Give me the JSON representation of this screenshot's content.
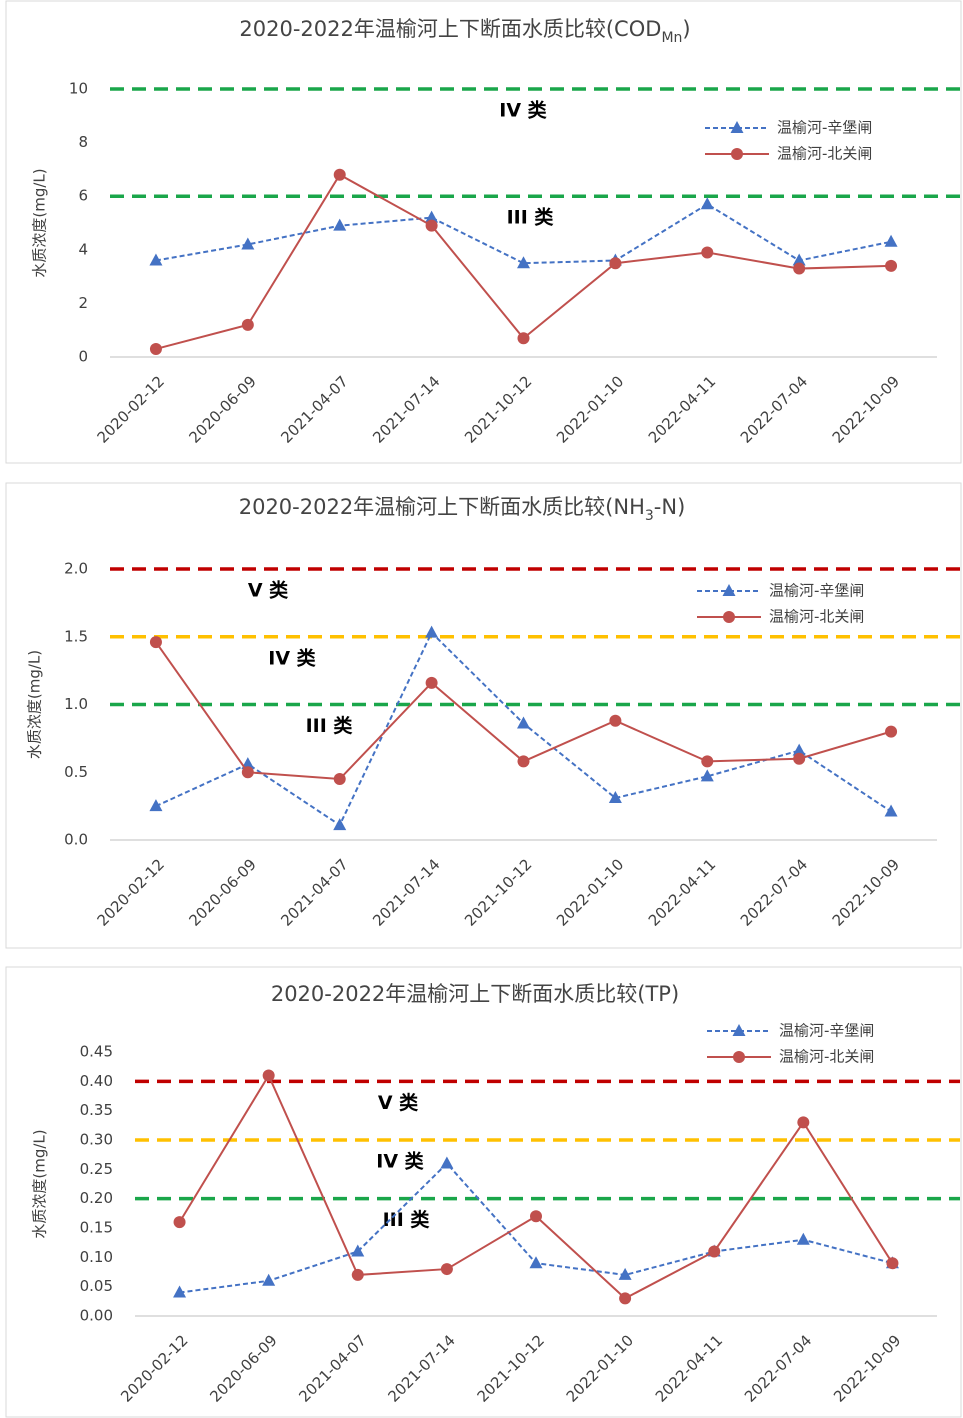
{
  "chart_data": [
    {
      "type": "line",
      "title": [
        "2020-2022年温榆河上下断面水质比较(COD",
        "Mn",
        ")"
      ],
      "y_label": "水质浓度(mg/L)",
      "categories": [
        "2020-02-12",
        "2020-06-09",
        "2021-04-07",
        "2021-07-14",
        "2021-10-12",
        "2022-01-10",
        "2022-04-11",
        "2022-07-04",
        "2022-10-09"
      ],
      "series": [
        {
          "name": "温榆河-辛堡闸",
          "color": "#4472c4",
          "values": [
            3.6,
            4.2,
            4.9,
            5.2,
            3.5,
            3.6,
            5.7,
            3.6,
            4.3
          ]
        },
        {
          "name": "温榆河-北关闸",
          "color": "#c0504d",
          "values": [
            0.3,
            1.2,
            6.8,
            4.9,
            0.7,
            3.5,
            3.9,
            3.3,
            3.4
          ]
        }
      ],
      "reference_lines": [
        {
          "value": 10,
          "color": "#1aa64a",
          "label": "IV 类"
        },
        {
          "value": 6,
          "color": "#1aa64a",
          "label": "III 类"
        }
      ],
      "ylim": [
        0,
        10
      ],
      "yticks": [
        0,
        2,
        4,
        6,
        8,
        10
      ],
      "grid": false,
      "legend": "upper right"
    },
    {
      "type": "line",
      "title": [
        "2020-2022年温榆河上下断面水质比较(NH",
        "3",
        "-N)"
      ],
      "y_label": "水质浓度(mg/L)",
      "categories": [
        "2020-02-12",
        "2020-06-09",
        "2021-04-07",
        "2021-07-14",
        "2021-10-12",
        "2022-01-10",
        "2022-04-11",
        "2022-07-04",
        "2022-10-09"
      ],
      "series": [
        {
          "name": "温榆河-辛堡闸",
          "color": "#4472c4",
          "values": [
            0.25,
            0.56,
            0.11,
            1.53,
            0.86,
            0.31,
            0.47,
            0.66,
            0.21
          ]
        },
        {
          "name": "温榆河-北关闸",
          "color": "#c0504d",
          "values": [
            1.46,
            0.5,
            0.45,
            1.16,
            0.58,
            0.88,
            0.58,
            0.6,
            0.8
          ]
        }
      ],
      "reference_lines": [
        {
          "value": 2,
          "color": "#c00000",
          "label": "V 类"
        },
        {
          "value": 1.5,
          "color": "#ffc000",
          "label": "IV 类"
        },
        {
          "value": 1,
          "color": "#1aa64a",
          "label": "III 类"
        }
      ],
      "ylim": [
        0,
        2
      ],
      "yticks": [
        {
          "value": 0,
          "label": "0.0"
        },
        0.5,
        {
          "value": 1,
          "label": "1.0"
        },
        1.5,
        {
          "value": 2,
          "label": "2.0"
        }
      ],
      "grid": false,
      "legend": "upper right"
    },
    {
      "type": "line",
      "title": "2020-2022年温榆河上下断面水质比较(TP)",
      "y_label": "水质浓度(mg/L)",
      "categories": [
        "2020-02-12",
        "2020-06-09",
        "2021-04-07",
        "2021-07-14",
        "2021-10-12",
        "2022-01-10",
        "2022-04-11",
        "2022-07-04",
        "2022-10-09"
      ],
      "series": [
        {
          "name": "温榆河-辛堡闸",
          "color": "#4472c4",
          "values": [
            0.04,
            0.06,
            0.11,
            0.26,
            0.09,
            0.07,
            0.11,
            0.13,
            0.09
          ]
        },
        {
          "name": "温榆河-北关闸",
          "color": "#c0504d",
          "values": [
            0.16,
            0.41,
            0.07,
            0.08,
            0.17,
            0.03,
            0.11,
            0.33,
            0.09
          ]
        }
      ],
      "reference_lines": [
        {
          "value": 0.4,
          "color": "#c00000",
          "label": "V 类"
        },
        {
          "value": 0.3,
          "color": "#ffc000",
          "label": "IV 类"
        },
        {
          "value": 0.2,
          "color": "#1aa64a",
          "label": "III 类"
        }
      ],
      "ylim": [
        0,
        0.45
      ],
      "yticks": [
        {
          "value": 0,
          "label": "0.00"
        },
        0.05,
        {
          "value": 0.1,
          "label": "0.10"
        },
        0.15,
        {
          "value": 0.2,
          "label": "0.20"
        },
        0.25,
        {
          "value": 0.3,
          "label": "0.30"
        },
        0.35,
        {
          "value": 0.4,
          "label": "0.40"
        },
        0.45
      ],
      "grid": false,
      "legend": "upper right"
    }
  ]
}
